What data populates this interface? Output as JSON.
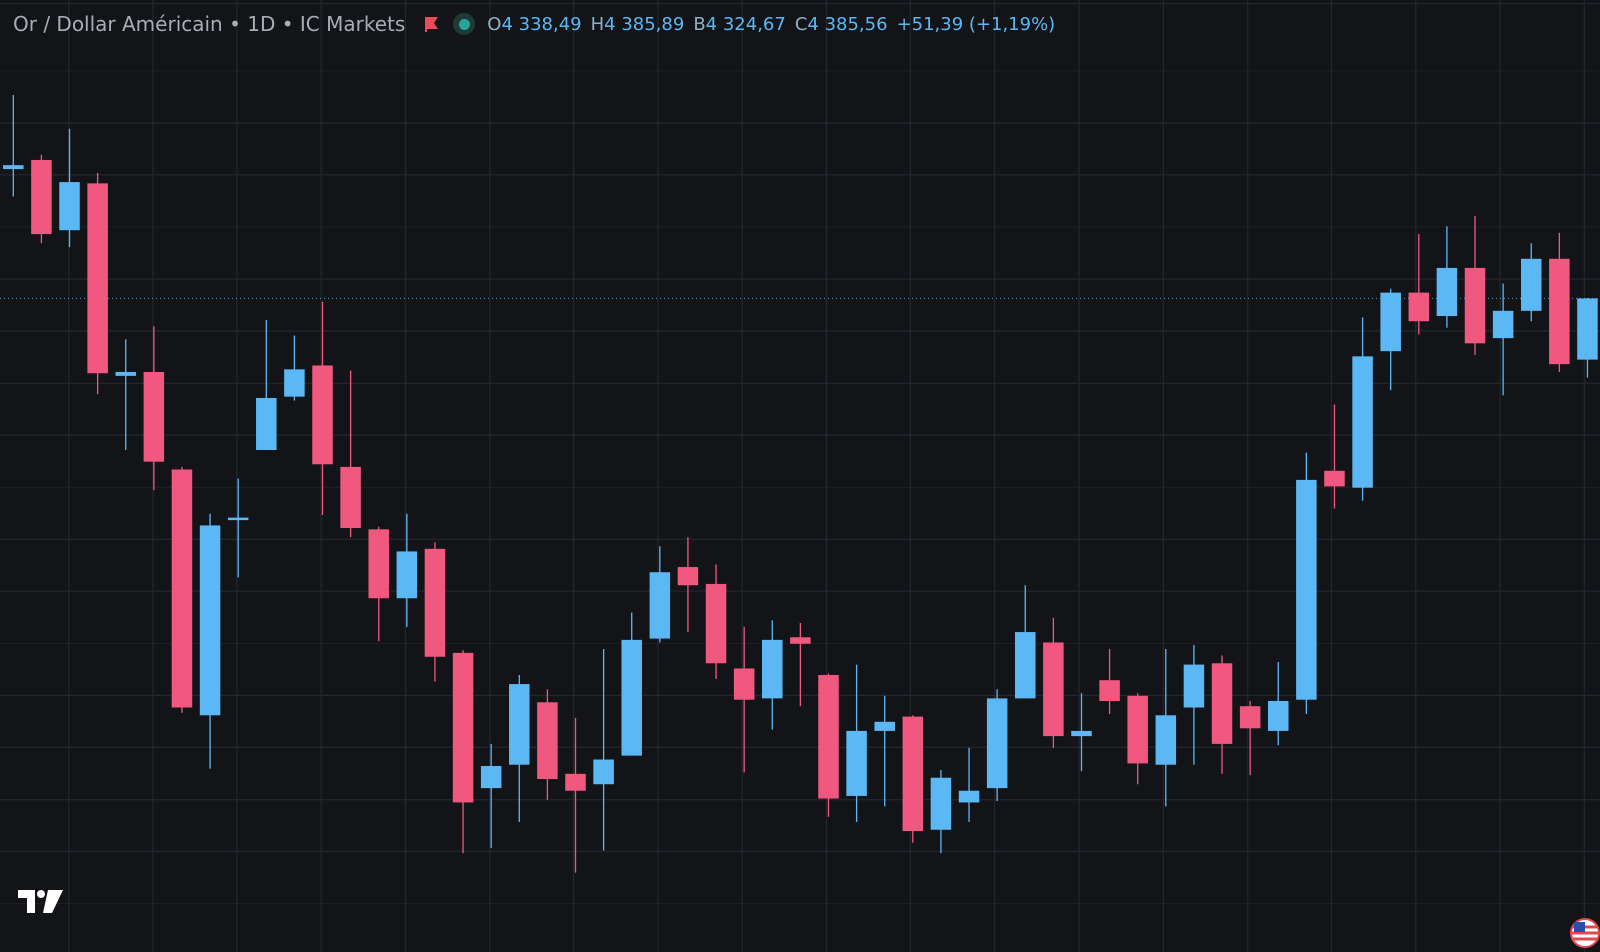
{
  "chart_data": {
    "type": "candlestick",
    "title": "Or / Dollar Américain • 1D • IC Markets",
    "legend": [
      {
        "label": "O",
        "value": "4 338,49"
      },
      {
        "label": "H",
        "value": "4 385,89"
      },
      {
        "label": "B",
        "value": "4 324,67"
      },
      {
        "label": "C",
        "value": "4 385,56"
      }
    ],
    "change": "+51,39 (+1,19%)",
    "open": [
      4485,
      4492,
      4438,
      4474,
      4326,
      4329,
      4254,
      4065,
      4216,
      4269,
      4310,
      4334,
      4256,
      4208,
      4155,
      4193,
      4113,
      4009,
      4027,
      4075,
      4020,
      4012,
      4034,
      4124,
      4179,
      4166,
      4101,
      4078,
      4125,
      4096,
      4003,
      4053,
      4064,
      3977,
      3998,
      4009,
      4078,
      4121,
      4049,
      4092,
      4080,
      4027,
      4071,
      4105,
      4072,
      4053,
      4077,
      4253,
      4240,
      4345,
      4390,
      4372,
      4409,
      4355,
      4376,
      4416,
      4338.49
    ],
    "high": [
      4542,
      4496,
      4516,
      4482,
      4354,
      4364,
      4256,
      4220,
      4247,
      4369,
      4357,
      4383,
      4330,
      4210,
      4220,
      4198,
      4115,
      4043,
      4096,
      4085,
      4063,
      4116,
      4144,
      4195,
      4202,
      4181,
      4133,
      4138,
      4136,
      4097,
      4104,
      4080,
      4065,
      4023,
      4040,
      4085,
      4165,
      4140,
      4082,
      4116,
      4082,
      4116,
      4119,
      4111,
      4076,
      4106,
      4267,
      4304,
      4371,
      4393,
      4435,
      4441,
      4449,
      4397,
      4428,
      4436,
      4385.89
    ],
    "low": [
      4464,
      4428,
      4425,
      4312,
      4269,
      4238,
      4067,
      4024,
      4171,
      4269,
      4307,
      4219,
      4202,
      4122,
      4133,
      4091,
      3959,
      3963,
      3983,
      4000,
      3944,
      3961,
      4034,
      4121,
      4129,
      4093,
      4021,
      4054,
      4072,
      3987,
      3983,
      3995,
      3967,
      3959,
      3983,
      3999,
      4078,
      4040,
      4022,
      4066,
      4012,
      3995,
      4027,
      4020,
      4019,
      4042,
      4066,
      4224,
      4230,
      4315,
      4358,
      4363,
      4342,
      4311,
      4368,
      4329,
      4324.67
    ],
    "close": [
      4488,
      4435,
      4475,
      4328,
      4329,
      4260,
      4071,
      4211,
      4217,
      4309,
      4331,
      4258,
      4209,
      4155,
      4191,
      4110,
      3998,
      4026,
      4089,
      4016,
      4007,
      4031,
      4123,
      4175,
      4165,
      4105,
      4077,
      4123,
      4120,
      4001,
      4053,
      4060,
      3976,
      4017,
      4007,
      4078,
      4129,
      4049,
      4053,
      4076,
      4028,
      4065,
      4104,
      4043,
      4055,
      4076,
      4246,
      4241,
      4341,
      4390,
      4368,
      4409,
      4351,
      4376,
      4416,
      4335,
      4385.56
    ],
    "up_color": "#5cb8f5",
    "down_color": "#f0587f",
    "ylim": [
      3883,
      4615
    ],
    "grid": true
  }
}
